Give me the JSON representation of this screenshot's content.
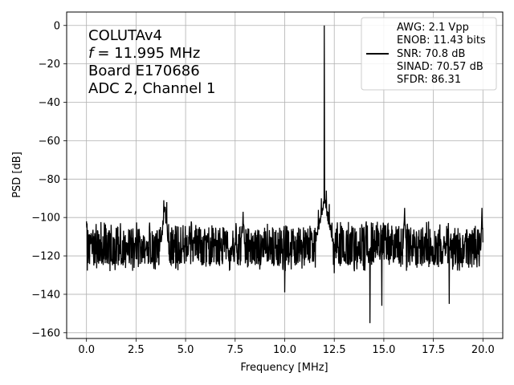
{
  "chart_data": {
    "type": "line",
    "title": "",
    "xlabel": "Frequency [MHz]",
    "ylabel": "PSD [dB]",
    "xlim": [
      -1.0,
      21.0
    ],
    "ylim": [
      -163,
      7
    ],
    "xticks": [
      0.0,
      2.5,
      5.0,
      7.5,
      10.0,
      12.5,
      15.0,
      17.5,
      20.0
    ],
    "xtick_labels": [
      "0.0",
      "2.5",
      "5.0",
      "7.5",
      "10.0",
      "12.5",
      "15.0",
      "17.5",
      "20.0"
    ],
    "yticks": [
      0,
      -20,
      -40,
      -60,
      -80,
      -100,
      -120,
      -140,
      -160
    ],
    "ytick_labels": [
      "0",
      "−20",
      "−40",
      "−60",
      "−80",
      "−100",
      "−120",
      "−140",
      "−160"
    ],
    "grid": true,
    "annotation_lines": [
      "COLUTAv4",
      "= 11.995 MHz",
      "Board E170686",
      "ADC 2, Channel 1"
    ],
    "annotation_variable": "f",
    "legend": {
      "placement": "top-right",
      "lines": [
        "AWG: 2.1 Vpp",
        "ENOB: 11.43 bits",
        "SNR: 70.8 dB",
        "SINAD: 70.57 dB",
        "SFDR: 86.31"
      ],
      "color": "#000000"
    },
    "series": [
      {
        "color": "#000000",
        "noise_floor_db": -115,
        "noise_band_db": [
          -128,
          -102
        ],
        "x_range": [
          0.0,
          20.0
        ],
        "features": [
          {
            "x": 0.0,
            "y": -102
          },
          {
            "x": 0.05,
            "y": -116
          },
          {
            "x": 3.9,
            "y": -91
          },
          {
            "x": 4.05,
            "y": -92
          },
          {
            "x": 7.9,
            "y": -97
          },
          {
            "x": 10.0,
            "y": -139
          },
          {
            "x": 11.7,
            "y": -96
          },
          {
            "x": 11.85,
            "y": -90
          },
          {
            "x": 11.995,
            "y": 0
          },
          {
            "x": 12.1,
            "y": -86
          },
          {
            "x": 12.25,
            "y": -93
          },
          {
            "x": 12.5,
            "y": -129
          },
          {
            "x": 14.3,
            "y": -155
          },
          {
            "x": 14.9,
            "y": -146
          },
          {
            "x": 16.05,
            "y": -95
          },
          {
            "x": 18.3,
            "y": -145
          },
          {
            "x": 19.95,
            "y": -95
          },
          {
            "x": 20.0,
            "y": -113
          }
        ]
      }
    ]
  }
}
